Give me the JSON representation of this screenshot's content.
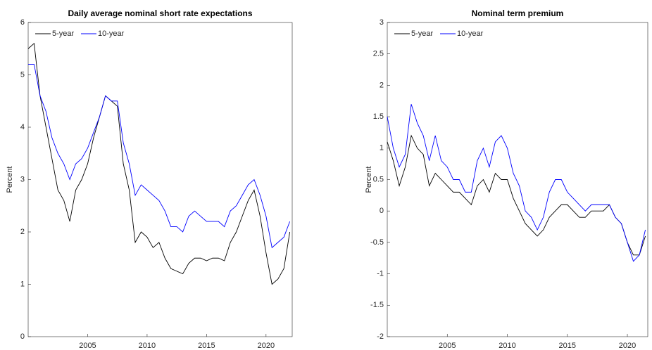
{
  "chart_data": [
    {
      "type": "line",
      "title": "Daily average nominal short rate expectations",
      "ylabel": "Percent",
      "x": [
        2000,
        2000.5,
        2001,
        2001.5,
        2002,
        2002.5,
        2003,
        2003.5,
        2004,
        2004.5,
        2005,
        2005.5,
        2006,
        2006.5,
        2007,
        2007.5,
        2008,
        2008.5,
        2009,
        2009.5,
        2010,
        2010.5,
        2011,
        2011.5,
        2012,
        2012.5,
        2013,
        2013.5,
        2014,
        2014.5,
        2015,
        2015.5,
        2016,
        2016.5,
        2017,
        2017.5,
        2018,
        2018.5,
        2019,
        2019.5,
        2020,
        2020.5,
        2021,
        2021.5,
        2022
      ],
      "series": [
        {
          "name": "5-year",
          "color": "#000000",
          "values": [
            5.5,
            5.6,
            4.6,
            4.0,
            3.4,
            2.8,
            2.6,
            2.2,
            2.8,
            3.0,
            3.3,
            3.8,
            4.2,
            4.6,
            4.5,
            4.4,
            3.3,
            2.8,
            1.8,
            2.0,
            1.9,
            1.7,
            1.8,
            1.5,
            1.3,
            1.25,
            1.2,
            1.4,
            1.5,
            1.5,
            1.45,
            1.5,
            1.5,
            1.45,
            1.8,
            2.0,
            2.3,
            2.6,
            2.8,
            2.3,
            1.6,
            1.0,
            1.1,
            1.3,
            2.0
          ]
        },
        {
          "name": "10-year",
          "color": "#0000ff",
          "values": [
            5.2,
            5.2,
            4.6,
            4.3,
            3.8,
            3.5,
            3.3,
            3.0,
            3.3,
            3.4,
            3.6,
            3.9,
            4.2,
            4.6,
            4.5,
            4.5,
            3.7,
            3.3,
            2.7,
            2.9,
            2.8,
            2.7,
            2.6,
            2.4,
            2.1,
            2.1,
            2.0,
            2.3,
            2.4,
            2.3,
            2.2,
            2.2,
            2.2,
            2.1,
            2.4,
            2.5,
            2.7,
            2.9,
            3.0,
            2.7,
            2.3,
            1.7,
            1.8,
            1.9,
            2.2
          ]
        }
      ],
      "xlim": [
        2000,
        2022.2
      ],
      "xticks": [
        2005,
        2010,
        2015,
        2020
      ],
      "ylim": [
        0,
        6
      ],
      "yticks": [
        0,
        1,
        2,
        3,
        4,
        5,
        6
      ],
      "legend": "upper-left"
    },
    {
      "type": "line",
      "title": "Nominal term premium",
      "ylabel": "Percent",
      "x": [
        2000,
        2000.5,
        2001,
        2001.5,
        2002,
        2002.5,
        2003,
        2003.5,
        2004,
        2004.5,
        2005,
        2005.5,
        2006,
        2006.5,
        2007,
        2007.5,
        2008,
        2008.5,
        2009,
        2009.5,
        2010,
        2010.5,
        2011,
        2011.5,
        2012,
        2012.5,
        2013,
        2013.5,
        2014,
        2014.5,
        2015,
        2015.5,
        2016,
        2016.5,
        2017,
        2017.5,
        2018,
        2018.5,
        2019,
        2019.5,
        2020,
        2020.5,
        2021,
        2021.5
      ],
      "series": [
        {
          "name": "5-year",
          "color": "#000000",
          "values": [
            1.1,
            0.8,
            0.4,
            0.7,
            1.2,
            1.0,
            0.9,
            0.4,
            0.6,
            0.5,
            0.4,
            0.3,
            0.3,
            0.2,
            0.1,
            0.4,
            0.5,
            0.3,
            0.6,
            0.5,
            0.5,
            0.2,
            0.0,
            -0.2,
            -0.3,
            -0.4,
            -0.3,
            -0.1,
            0.0,
            0.1,
            0.1,
            0.0,
            -0.1,
            -0.1,
            0.0,
            0.0,
            0.0,
            0.1,
            -0.1,
            -0.2,
            -0.5,
            -0.7,
            -0.7,
            -0.4
          ]
        },
        {
          "name": "10-year",
          "color": "#0000ff",
          "values": [
            1.5,
            1.0,
            0.7,
            0.9,
            1.7,
            1.4,
            1.2,
            0.8,
            1.2,
            0.8,
            0.7,
            0.5,
            0.5,
            0.3,
            0.3,
            0.8,
            1.0,
            0.7,
            1.1,
            1.2,
            1.0,
            0.6,
            0.4,
            0.0,
            -0.1,
            -0.3,
            -0.1,
            0.3,
            0.5,
            0.5,
            0.3,
            0.2,
            0.1,
            0.0,
            0.1,
            0.1,
            0.1,
            0.1,
            -0.1,
            -0.2,
            -0.5,
            -0.8,
            -0.7,
            -0.3
          ]
        }
      ],
      "xlim": [
        2000,
        2021.7
      ],
      "xticks": [
        2005,
        2010,
        2015,
        2020
      ],
      "ylim": [
        -2,
        3
      ],
      "yticks": [
        -2,
        -1.5,
        -1,
        -0.5,
        0,
        0.5,
        1,
        1.5,
        2,
        2.5,
        3
      ],
      "legend": "upper-left"
    }
  ]
}
